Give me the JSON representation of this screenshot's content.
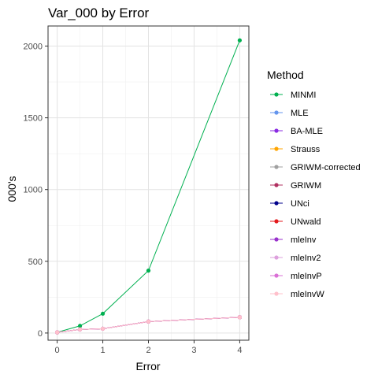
{
  "chart_data": {
    "type": "line",
    "title": "Var_000 by Error",
    "xlabel": "Error",
    "ylabel": "000's",
    "xlim": [
      -0.2,
      4.2
    ],
    "ylim": [
      -50,
      2140
    ],
    "x_ticks": [
      0,
      1,
      2,
      3,
      4
    ],
    "y_ticks": [
      0,
      500,
      1000,
      1500,
      2000
    ],
    "grid": true,
    "legend_title": "Method",
    "legend_position": "right",
    "x": [
      0,
      0.5,
      1,
      2,
      4
    ],
    "series": [
      {
        "name": "MINMI",
        "color": "#00b050",
        "values": [
          5,
          50,
          135,
          435,
          2040
        ]
      },
      {
        "name": "MLE",
        "color": "#6495ed",
        "values": [
          5,
          25,
          30,
          80,
          110
        ]
      },
      {
        "name": "BA-MLE",
        "color": "#8a2be2",
        "values": [
          5,
          25,
          30,
          80,
          110
        ]
      },
      {
        "name": "Strauss",
        "color": "#ffa500",
        "values": [
          5,
          25,
          30,
          80,
          110
        ]
      },
      {
        "name": "GRIWM-corrected",
        "color": "#a0a0a0",
        "values": [
          5,
          25,
          30,
          80,
          110
        ]
      },
      {
        "name": "GRIWM",
        "color": "#b03060",
        "values": [
          5,
          25,
          30,
          80,
          110
        ]
      },
      {
        "name": "UNci",
        "color": "#00008b",
        "values": [
          5,
          25,
          30,
          80,
          110
        ]
      },
      {
        "name": "UNwald",
        "color": "#e31a1c",
        "values": [
          5,
          25,
          30,
          80,
          110
        ]
      },
      {
        "name": "mleInv",
        "color": "#9932cc",
        "values": [
          5,
          25,
          30,
          80,
          110
        ]
      },
      {
        "name": "mleInv2",
        "color": "#dda0dd",
        "values": [
          5,
          25,
          30,
          80,
          110
        ]
      },
      {
        "name": "mleInvP",
        "color": "#da70d6",
        "values": [
          5,
          25,
          30,
          80,
          110
        ]
      },
      {
        "name": "mleInvW",
        "color": "#ffc0cb",
        "values": [
          5,
          25,
          30,
          80,
          110
        ]
      }
    ]
  }
}
